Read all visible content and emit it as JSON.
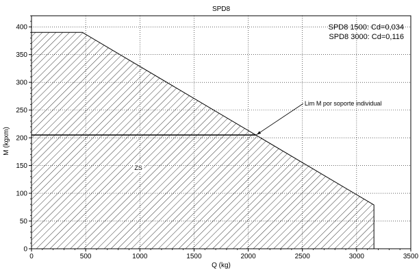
{
  "chart_data": {
    "type": "area",
    "title": "SPD8",
    "xlabel": "Q (kg)",
    "ylabel": "M (kgxm)",
    "xlim": [
      0,
      3500
    ],
    "ylim": [
      0,
      420
    ],
    "x_ticks": [
      0,
      500,
      1000,
      1500,
      2000,
      2500,
      3000,
      3500
    ],
    "y_ticks": [
      0,
      50,
      100,
      150,
      200,
      250,
      300,
      350,
      400
    ],
    "x_tick_labels": [
      "0",
      "500",
      "1000",
      "1500",
      "2000",
      "2500",
      "3000",
      "3500"
    ],
    "y_tick_labels": [
      "0",
      "50",
      "100",
      "150",
      "200",
      "250",
      "300",
      "350",
      "400"
    ],
    "grid": true,
    "legend_position": "top-right",
    "legend_lines": [
      "SPD8 1500: Cd=0,034",
      "SPD8 3000: Cd=0,116"
    ],
    "series": [
      {
        "x": [
          0,
          0,
          470,
          3160,
          3160
        ],
        "y": [
          0,
          390,
          390,
          79,
          0
        ],
        "fill": "hatched"
      }
    ],
    "reference_line": {
      "y": 205,
      "x_range": [
        0,
        2080
      ]
    },
    "annotations": [
      {
        "text": "Lim M por soporte individual",
        "x": 2520,
        "y": 258,
        "target_x": 2080,
        "target_y": 206
      },
      {
        "text": "ZS",
        "x": 950,
        "y": 142
      }
    ]
  }
}
